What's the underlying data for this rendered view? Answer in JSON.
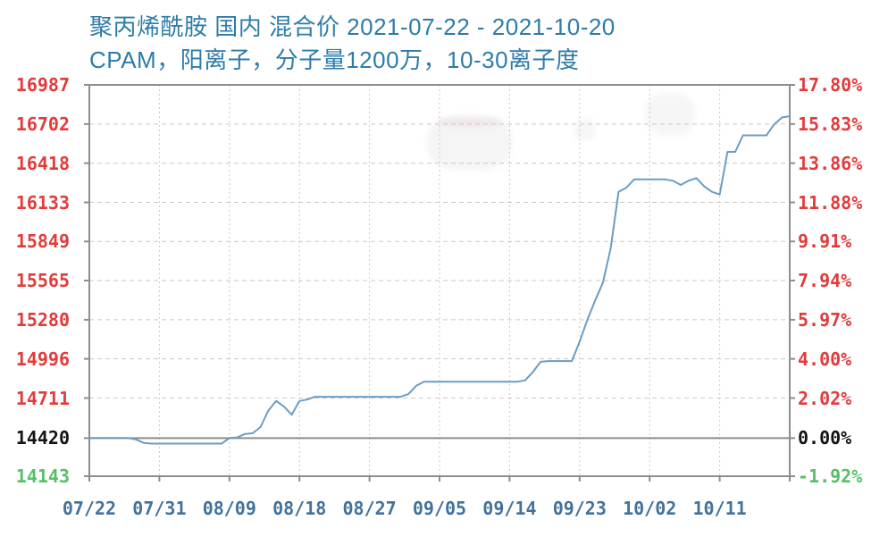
{
  "page": {
    "background": "#ffffff"
  },
  "title": {
    "line1": "聚丙烯酰胺 国内 混合价 2021-07-22 - 2021-10-20",
    "line2": "CPAM，阳离子，分子量1200万，10-30离子度"
  },
  "colors": {
    "title_text": "#2d7ca9",
    "axis_red": "#e23b3b",
    "axis_black": "#141414",
    "axis_green": "#55c065",
    "x_label": "#41729c",
    "price_line": "#6b9cc3",
    "zero_line": "#8e8e8e",
    "plot_border": "#8e8e8e",
    "grid_line": "#c9c9c9"
  },
  "chart_data": {
    "type": "line",
    "title": "聚丙烯酰胺 国内 混合价 2021-07-22 - 2021-10-20",
    "subtitle": "CPAM，阳离子，分子量1200万，10-30离子度",
    "product": "聚丙烯酰胺",
    "market_scope": "国内",
    "price_kind": "混合价",
    "spec": "CPAM，阳离子，分子量1200万，10-30离子度",
    "date_start": "2021-07-22",
    "date_end": "2021-10-20",
    "grid": true,
    "legend_position": "none",
    "base_value": 14420,
    "ylim": [
      14143,
      16987
    ],
    "y_axis_left": {
      "values": [
        16987,
        16702,
        16418,
        16133,
        15849,
        15565,
        15280,
        14996,
        14711,
        14420,
        14143
      ],
      "labels": [
        "16987",
        "16702",
        "16418",
        "16133",
        "15849",
        "15565",
        "15280",
        "14996",
        "14711",
        "14420",
        "14143"
      ],
      "label_colors": [
        "#e23b3b",
        "#e23b3b",
        "#e23b3b",
        "#e23b3b",
        "#e23b3b",
        "#e23b3b",
        "#e23b3b",
        "#e23b3b",
        "#e23b3b",
        "#141414",
        "#55c065"
      ]
    },
    "y_axis_right": {
      "labels": [
        "17.80%",
        "15.83%",
        "13.86%",
        "11.88%",
        "9.91%",
        "7.94%",
        "5.97%",
        "4.00%",
        "2.02%",
        "0.00%",
        "-1.92%"
      ],
      "label_colors": [
        "#e23b3b",
        "#e23b3b",
        "#e23b3b",
        "#e23b3b",
        "#e23b3b",
        "#e23b3b",
        "#e23b3b",
        "#e23b3b",
        "#e23b3b",
        "#141414",
        "#55c065"
      ]
    },
    "x_axis": {
      "tick_labels": [
        "07/22",
        "07/31",
        "08/09",
        "08/18",
        "08/27",
        "09/05",
        "09/14",
        "09/23",
        "10/02",
        "10/11"
      ],
      "tick_interval_days": 9,
      "total_days": 90
    },
    "series": [
      {
        "name": "混合价",
        "x": [
          "07/22",
          "07/23",
          "07/24",
          "07/25",
          "07/26",
          "07/27",
          "07/28",
          "07/29",
          "07/30",
          "07/31",
          "08/01",
          "08/02",
          "08/03",
          "08/04",
          "08/05",
          "08/06",
          "08/07",
          "08/08",
          "08/09",
          "08/10",
          "08/11",
          "08/12",
          "08/13",
          "08/14",
          "08/15",
          "08/16",
          "08/17",
          "08/18",
          "08/19",
          "08/20",
          "08/21",
          "08/22",
          "08/23",
          "08/24",
          "08/25",
          "08/26",
          "08/27",
          "08/28",
          "08/29",
          "08/30",
          "08/31",
          "09/01",
          "09/02",
          "09/03",
          "09/04",
          "09/05",
          "09/06",
          "09/07",
          "09/08",
          "09/09",
          "09/10",
          "09/11",
          "09/12",
          "09/13",
          "09/14",
          "09/15",
          "09/16",
          "09/17",
          "09/18",
          "09/19",
          "09/20",
          "09/21",
          "09/22",
          "09/23",
          "09/24",
          "09/25",
          "09/26",
          "09/27",
          "09/28",
          "09/29",
          "09/30",
          "10/01",
          "10/02",
          "10/03",
          "10/04",
          "10/05",
          "10/06",
          "10/07",
          "10/08",
          "10/09",
          "10/10",
          "10/11",
          "10/12",
          "10/13",
          "10/14",
          "10/15",
          "10/16",
          "10/17",
          "10/18",
          "10/19",
          "10/20"
        ],
        "values": [
          14420,
          14420,
          14420,
          14420,
          14420,
          14420,
          14410,
          14385,
          14380,
          14380,
          14380,
          14380,
          14380,
          14380,
          14380,
          14380,
          14380,
          14380,
          14420,
          14425,
          14450,
          14455,
          14500,
          14620,
          14690,
          14650,
          14590,
          14690,
          14700,
          14720,
          14720,
          14720,
          14720,
          14720,
          14720,
          14720,
          14720,
          14720,
          14720,
          14720,
          14720,
          14740,
          14800,
          14830,
          14830,
          14830,
          14830,
          14830,
          14830,
          14830,
          14830,
          14830,
          14830,
          14830,
          14830,
          14830,
          14840,
          14900,
          14975,
          14980,
          14980,
          14980,
          14980,
          15120,
          15280,
          15420,
          15550,
          15800,
          16210,
          16240,
          16300,
          16300,
          16300,
          16300,
          16300,
          16290,
          16260,
          16290,
          16310,
          16250,
          16210,
          16190,
          16500,
          16500,
          16620,
          16620,
          16620,
          16620,
          16700,
          16750,
          16760
        ]
      }
    ]
  }
}
